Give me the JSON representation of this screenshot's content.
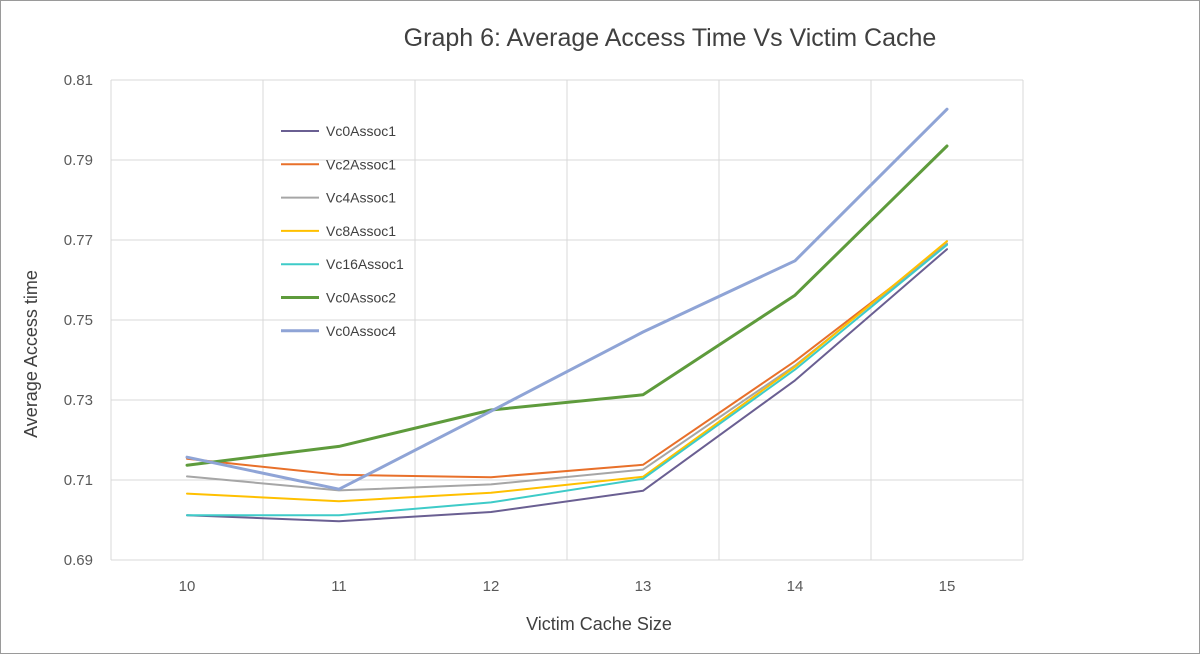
{
  "chart_data": {
    "type": "line",
    "title": "Graph 6: Average Access Time Vs Victim Cache",
    "xlabel": "Victim Cache Size",
    "ylabel": "Average Access time",
    "categories": [
      "10",
      "11",
      "12",
      "13",
      "14",
      "15"
    ],
    "ylim": [
      0.69,
      0.81
    ],
    "yticks": [
      "0.69",
      "0.71",
      "0.73",
      "0.75",
      "0.77",
      "0.79",
      "0.81"
    ],
    "grid": true,
    "legend_position": "top-left inside plot",
    "series": [
      {
        "name": "Vc0Assoc1",
        "color": "#6a5f92",
        "values": [
          0.7012,
          0.6997,
          0.702,
          0.7073,
          0.7349,
          0.7677
        ]
      },
      {
        "name": "Vc2Assoc1",
        "color": "#e8702a",
        "values": [
          0.7153,
          0.7113,
          0.7107,
          0.7138,
          0.7397,
          0.7689
        ]
      },
      {
        "name": "Vc4Assoc1",
        "color": "#a6a6a6",
        "values": [
          0.7109,
          0.7074,
          0.7089,
          0.7126,
          0.7386,
          0.7691
        ]
      },
      {
        "name": "Vc8Assoc1",
        "color": "#ffc000",
        "values": [
          0.7066,
          0.7047,
          0.7068,
          0.7108,
          0.7383,
          0.7697
        ]
      },
      {
        "name": "Vc16Assoc1",
        "color": "#3ecbc8",
        "values": [
          0.7012,
          0.7012,
          0.7044,
          0.7103,
          0.7376,
          0.7688
        ]
      },
      {
        "name": "Vc0Assoc2",
        "color": "#5e9b3c",
        "values": [
          0.7137,
          0.7184,
          0.7275,
          0.7313,
          0.7562,
          0.7935
        ]
      },
      {
        "name": "Vc0Assoc4",
        "color": "#8fa4d6",
        "values": [
          0.7157,
          0.7077,
          0.7272,
          0.747,
          0.7648,
          0.8027
        ]
      }
    ]
  }
}
